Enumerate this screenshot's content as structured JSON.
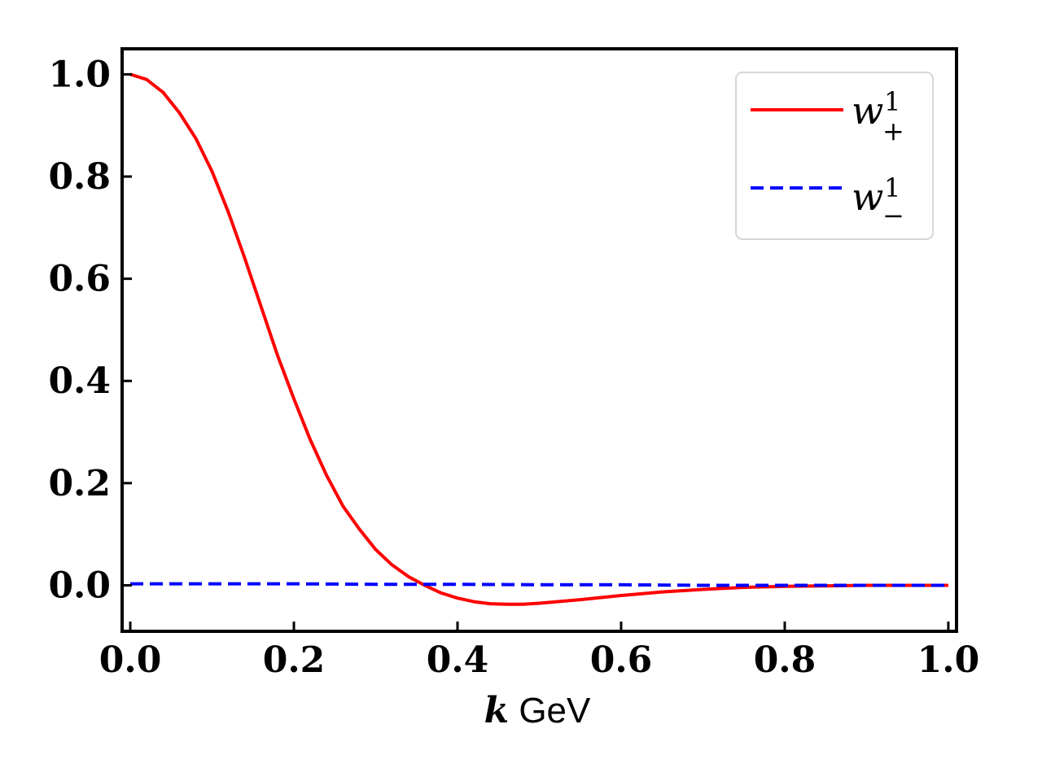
{
  "chart_data": {
    "type": "line",
    "title": "",
    "xlabel_var": "k",
    "xlabel_unit": " GeV",
    "ylabel": "",
    "xlim": [
      -0.01,
      1.01
    ],
    "ylim": [
      -0.09,
      1.05
    ],
    "grid": false,
    "legend_position": "top-right",
    "xticks": [
      0.0,
      0.2,
      0.4,
      0.6,
      0.8,
      1.0
    ],
    "xtick_labels": [
      "0.0",
      "0.2",
      "0.4",
      "0.6",
      "0.8",
      "1.0"
    ],
    "yticks": [
      0.0,
      0.2,
      0.4,
      0.6,
      0.8,
      1.0
    ],
    "ytick_labels": [
      "0.0",
      "0.2",
      "0.4",
      "0.6",
      "0.8",
      "1.0"
    ],
    "series": [
      {
        "name": "w+1",
        "label_base": "w",
        "label_sup": "1",
        "label_sub": "+",
        "color": "#ff0000",
        "style": "solid",
        "x": [
          0.0,
          0.02,
          0.04,
          0.06,
          0.08,
          0.1,
          0.12,
          0.14,
          0.16,
          0.18,
          0.2,
          0.22,
          0.24,
          0.26,
          0.28,
          0.3,
          0.32,
          0.34,
          0.36,
          0.38,
          0.4,
          0.42,
          0.44,
          0.46,
          0.48,
          0.5,
          0.55,
          0.6,
          0.65,
          0.7,
          0.75,
          0.8,
          0.85,
          0.9,
          0.95,
          1.0
        ],
        "y": [
          1.0,
          0.99,
          0.965,
          0.925,
          0.875,
          0.81,
          0.73,
          0.64,
          0.545,
          0.45,
          0.365,
          0.285,
          0.215,
          0.155,
          0.11,
          0.07,
          0.04,
          0.017,
          0.0,
          -0.015,
          -0.025,
          -0.032,
          -0.036,
          -0.037,
          -0.037,
          -0.035,
          -0.028,
          -0.02,
          -0.013,
          -0.008,
          -0.004,
          -0.002,
          -0.001,
          0.0,
          0.0,
          0.0
        ]
      },
      {
        "name": "w-1",
        "label_base": "w",
        "label_sup": "1",
        "label_sub": "−",
        "color": "#0000ff",
        "style": "dashed",
        "x": [
          0.0,
          0.1,
          0.2,
          0.3,
          0.4,
          0.5,
          0.6,
          0.7,
          0.8,
          0.9,
          1.0
        ],
        "y": [
          0.003,
          0.003,
          0.003,
          0.002,
          0.002,
          0.001,
          0.001,
          0.0,
          0.0,
          0.0,
          0.0
        ]
      }
    ]
  }
}
